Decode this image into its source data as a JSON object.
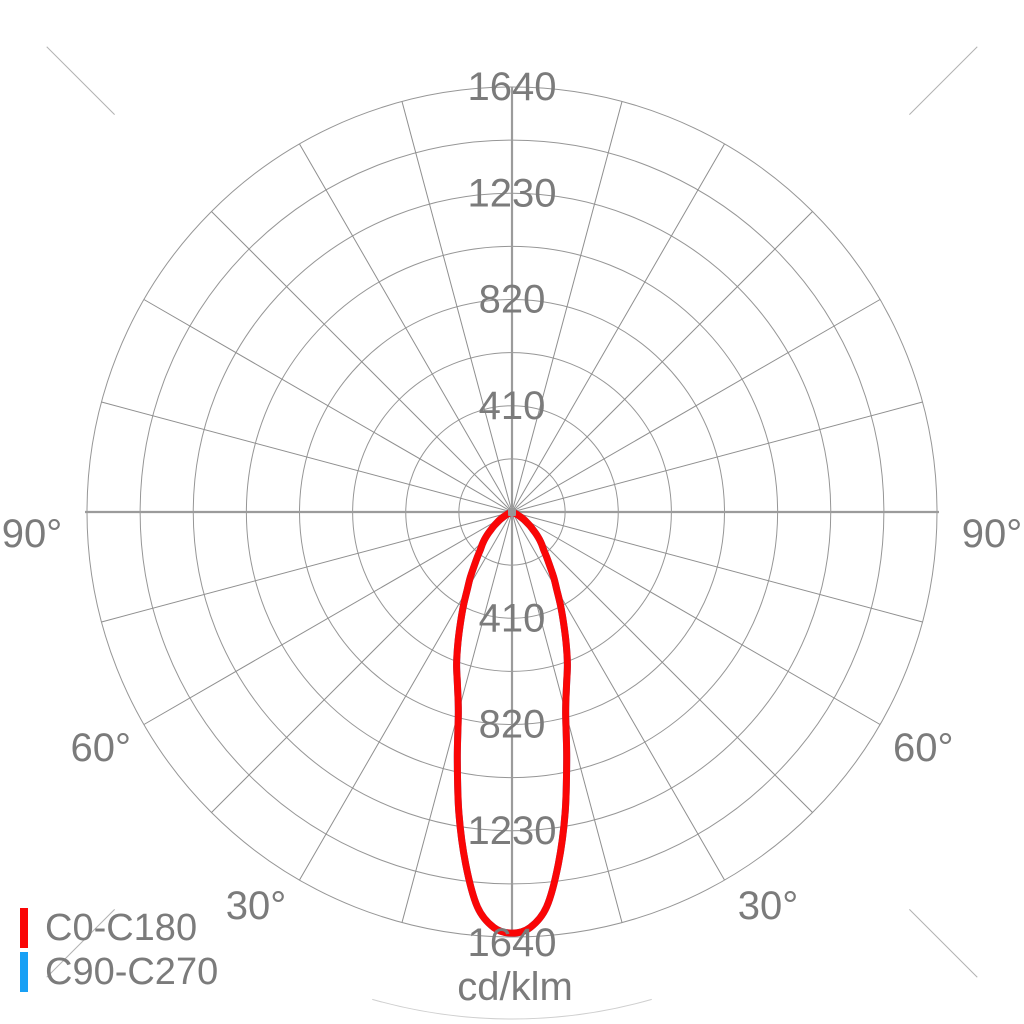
{
  "unit_label": "cd/klm",
  "legend": {
    "items": [
      {
        "label": "C0-C180",
        "color": "#fa0606"
      },
      {
        "label": "C90-C270",
        "color": "#18a0f5"
      }
    ]
  },
  "chart_data": {
    "type": "line",
    "coordinate_system": "polar",
    "title": "",
    "units": "cd/klm",
    "radial_axis": {
      "min": 0,
      "max": 1640,
      "ring_step": 205,
      "labeled_values": [
        410,
        820,
        1230,
        1640
      ],
      "tick_label_strings": [
        "410",
        "820",
        "1230",
        "1640"
      ],
      "unit_label": "cd/klm"
    },
    "angular_axis": {
      "zero_direction": "down",
      "grid_step_deg": 15,
      "labeled_angles_deg": [
        30,
        60,
        90
      ],
      "angle_label_strings": [
        "30°",
        "60°",
        "90°"
      ],
      "labels_on_both_sides": true
    },
    "grid": true,
    "legend_position": "bottom-left",
    "series": [
      {
        "name": "C0-C180",
        "color": "#fa0606",
        "visible": true,
        "symmetric": true,
        "points": [
          [
            0,
            1625
          ],
          [
            2.5,
            1605
          ],
          [
            5,
            1530
          ],
          [
            7.5,
            1370
          ],
          [
            10,
            1180
          ],
          [
            12.5,
            975
          ],
          [
            15,
            800
          ],
          [
            17.5,
            700
          ],
          [
            20,
            625
          ],
          [
            22.5,
            545
          ],
          [
            25,
            470
          ],
          [
            27.5,
            405
          ],
          [
            30,
            345
          ],
          [
            32.5,
            300
          ],
          [
            35,
            255
          ],
          [
            37.5,
            220
          ],
          [
            40,
            190
          ],
          [
            42.5,
            170
          ],
          [
            45,
            150
          ],
          [
            47.5,
            128
          ],
          [
            50,
            105
          ],
          [
            52.5,
            88
          ],
          [
            55,
            70
          ],
          [
            57.5,
            55
          ],
          [
            60,
            40
          ],
          [
            62.5,
            28
          ],
          [
            65,
            18
          ],
          [
            67.5,
            8
          ],
          [
            70,
            0
          ]
        ]
      },
      {
        "name": "C90-C270",
        "color": "#18a0f5",
        "visible": false,
        "symmetric": true,
        "points_same_as": "C0-C180"
      }
    ]
  }
}
